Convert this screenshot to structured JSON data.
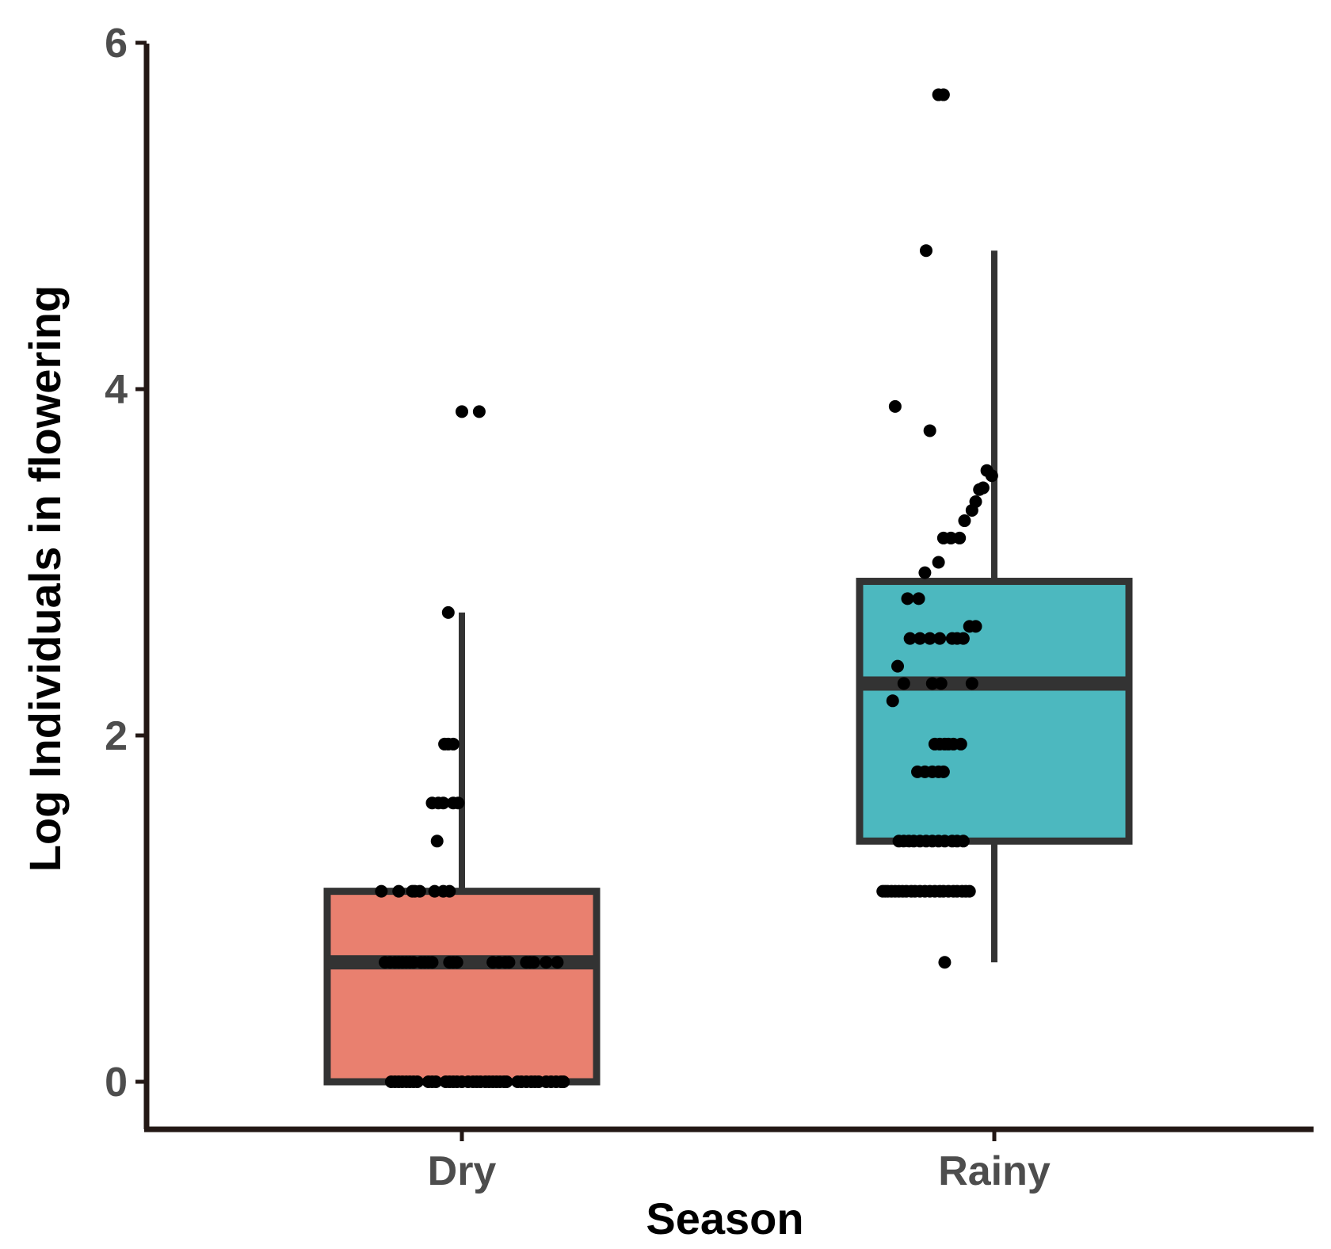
{
  "chart_data": {
    "type": "boxplot",
    "xlabel": "Season",
    "ylabel": "Log Individuals in flowering",
    "ylim": [
      -0.3,
      6
    ],
    "yticks": [
      0,
      2,
      4,
      6
    ],
    "ytick_labels": [
      "0",
      "2",
      "4",
      "6"
    ],
    "grid": false,
    "legend": "none",
    "categories": [
      "Dry",
      "Rainy"
    ],
    "groups": [
      {
        "name": "Dry",
        "color": "#e9806f",
        "whisker_low": 0,
        "q1": 0,
        "median": 0.69,
        "q3": 1.1,
        "whisker_high": 2.71,
        "points": [
          [
            0.38,
            0.69
          ],
          [
            0.42,
            0.69
          ],
          [
            0.46,
            0.69
          ],
          [
            0.49,
            0.69
          ],
          [
            0.52,
            0.69
          ],
          [
            0.55,
            0.69
          ],
          [
            0.58,
            0.69
          ],
          [
            0.61,
            0.69
          ],
          [
            0.67,
            0.69
          ],
          [
            0.7,
            0.69
          ],
          [
            0.73,
            0.69
          ],
          [
            0.76,
            0.69
          ],
          [
            0.9,
            0.69
          ],
          [
            0.93,
            0.69
          ],
          [
            0.96,
            0.69
          ],
          [
            1.25,
            0.69
          ],
          [
            1.3,
            0.69
          ],
          [
            1.35,
            0.69
          ],
          [
            1.38,
            0.69
          ],
          [
            1.52,
            0.69
          ],
          [
            1.55,
            0.69
          ],
          [
            1.58,
            0.69
          ],
          [
            1.68,
            0.69
          ],
          [
            1.77,
            0.69
          ],
          [
            0.35,
            1.1
          ],
          [
            0.49,
            1.1
          ],
          [
            0.6,
            1.1
          ],
          [
            0.62,
            1.1
          ],
          [
            0.66,
            1.1
          ],
          [
            0.78,
            1.1
          ],
          [
            0.85,
            1.1
          ],
          [
            0.9,
            1.1
          ],
          [
            0.43,
            0
          ],
          [
            0.46,
            0
          ],
          [
            0.49,
            0
          ],
          [
            0.52,
            0
          ],
          [
            0.55,
            0
          ],
          [
            0.58,
            0
          ],
          [
            0.61,
            0
          ],
          [
            0.64,
            0
          ],
          [
            0.73,
            0
          ],
          [
            0.76,
            0
          ],
          [
            0.79,
            0
          ],
          [
            0.87,
            0
          ],
          [
            0.9,
            0
          ],
          [
            0.93,
            0
          ],
          [
            0.96,
            0
          ],
          [
            1.0,
            0
          ],
          [
            1.05,
            0
          ],
          [
            1.09,
            0
          ],
          [
            1.12,
            0
          ],
          [
            1.15,
            0
          ],
          [
            1.19,
            0
          ],
          [
            1.22,
            0
          ],
          [
            1.25,
            0
          ],
          [
            1.28,
            0
          ],
          [
            1.31,
            0
          ],
          [
            1.34,
            0
          ],
          [
            1.36,
            0
          ],
          [
            1.45,
            0
          ],
          [
            1.48,
            0
          ],
          [
            1.52,
            0
          ],
          [
            1.56,
            0
          ],
          [
            1.59,
            0
          ],
          [
            1.62,
            0
          ],
          [
            1.68,
            0
          ],
          [
            1.72,
            0
          ],
          [
            1.76,
            0
          ],
          [
            1.8,
            0
          ],
          [
            1.82,
            0
          ],
          [
            0.8,
            1.39
          ],
          [
            0.76,
            1.61
          ],
          [
            0.81,
            1.61
          ],
          [
            0.85,
            1.61
          ],
          [
            0.93,
            1.61
          ],
          [
            0.97,
            1.61
          ],
          [
            0.86,
            1.95
          ],
          [
            0.89,
            1.95
          ],
          [
            0.93,
            1.95
          ],
          [
            1.0,
            3.87
          ],
          [
            1.14,
            3.87
          ],
          [
            0.89,
            2.71
          ]
        ]
      },
      {
        "name": "Rainy",
        "color": "#4cb8bf",
        "whisker_low": 0.69,
        "q1": 1.39,
        "median": 2.3,
        "q3": 2.89,
        "whisker_high": 4.8,
        "points": [
          [
            0.6,
            0.69
          ],
          [
            0.1,
            1.1
          ],
          [
            0.12,
            1.1
          ],
          [
            0.14,
            1.1
          ],
          [
            0.17,
            1.1
          ],
          [
            0.2,
            1.1
          ],
          [
            0.23,
            1.1
          ],
          [
            0.26,
            1.1
          ],
          [
            0.29,
            1.1
          ],
          [
            0.33,
            1.1
          ],
          [
            0.36,
            1.1
          ],
          [
            0.4,
            1.1
          ],
          [
            0.44,
            1.1
          ],
          [
            0.48,
            1.1
          ],
          [
            0.52,
            1.1
          ],
          [
            0.56,
            1.1
          ],
          [
            0.59,
            1.1
          ],
          [
            0.63,
            1.1
          ],
          [
            0.67,
            1.1
          ],
          [
            0.7,
            1.1
          ],
          [
            0.74,
            1.1
          ],
          [
            0.77,
            1.1
          ],
          [
            0.8,
            1.1
          ],
          [
            0.23,
            1.39
          ],
          [
            0.27,
            1.39
          ],
          [
            0.31,
            1.39
          ],
          [
            0.35,
            1.39
          ],
          [
            0.4,
            1.39
          ],
          [
            0.45,
            1.39
          ],
          [
            0.5,
            1.39
          ],
          [
            0.55,
            1.39
          ],
          [
            0.6,
            1.39
          ],
          [
            0.66,
            1.39
          ],
          [
            0.7,
            1.39
          ],
          [
            0.75,
            1.39
          ],
          [
            0.38,
            1.79
          ],
          [
            0.44,
            1.79
          ],
          [
            0.5,
            1.79
          ],
          [
            0.55,
            1.79
          ],
          [
            0.59,
            1.79
          ],
          [
            0.52,
            1.95
          ],
          [
            0.56,
            1.95
          ],
          [
            0.6,
            1.95
          ],
          [
            0.63,
            1.95
          ],
          [
            0.67,
            1.95
          ],
          [
            0.73,
            1.95
          ],
          [
            0.18,
            2.2
          ],
          [
            0.27,
            2.3
          ],
          [
            0.5,
            2.3
          ],
          [
            0.57,
            2.3
          ],
          [
            0.82,
            2.3
          ],
          [
            0.22,
            2.4
          ],
          [
            0.32,
            2.56
          ],
          [
            0.4,
            2.56
          ],
          [
            0.48,
            2.56
          ],
          [
            0.56,
            2.56
          ],
          [
            0.66,
            2.56
          ],
          [
            0.7,
            2.56
          ],
          [
            0.75,
            2.56
          ],
          [
            0.8,
            2.63
          ],
          [
            0.85,
            2.63
          ],
          [
            0.3,
            2.79
          ],
          [
            0.39,
            2.79
          ],
          [
            0.44,
            2.94
          ],
          [
            0.55,
            3.0
          ],
          [
            0.59,
            3.14
          ],
          [
            0.65,
            3.14
          ],
          [
            0.72,
            3.14
          ],
          [
            0.76,
            3.24
          ],
          [
            0.82,
            3.3
          ],
          [
            0.85,
            3.35
          ],
          [
            0.88,
            3.42
          ],
          [
            0.91,
            3.43
          ],
          [
            0.94,
            3.53
          ],
          [
            0.98,
            3.5
          ],
          [
            0.48,
            3.76
          ],
          [
            0.2,
            3.9
          ],
          [
            0.45,
            4.8
          ],
          [
            0.55,
            5.7
          ],
          [
            0.59,
            5.7
          ]
        ]
      }
    ],
    "point_color": "#000000"
  }
}
